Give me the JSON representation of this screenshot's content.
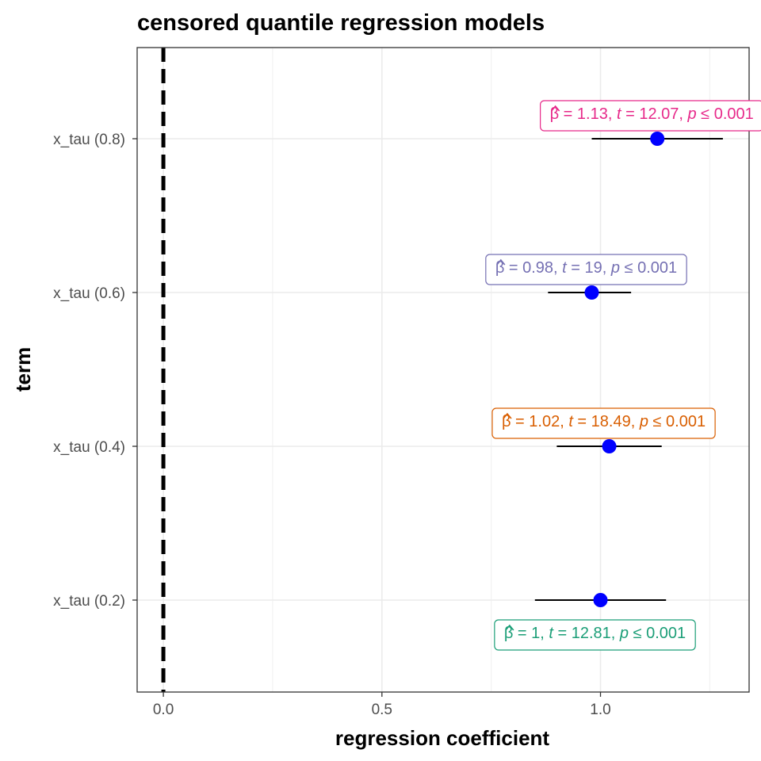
{
  "chart_data": {
    "type": "scatter",
    "title": "censored quantile regression models",
    "xlabel": "regression coefficient",
    "ylabel": "term",
    "xlim": [
      -0.06,
      1.34
    ],
    "x_ticks": [
      0.0,
      0.5,
      1.0
    ],
    "x_tick_labels": [
      "0.0",
      "0.5",
      "1.0"
    ],
    "grid": true,
    "reference_line": {
      "x": 0,
      "style": "dashed",
      "color": "#000000"
    },
    "point_color": "#0000ff",
    "terms": [
      "x_tau (0.2)",
      "x_tau (0.4)",
      "x_tau (0.6)",
      "x_tau (0.8)"
    ],
    "points": [
      {
        "term": "x_tau (0.2)",
        "estimate": 1.0,
        "conf_low": 0.85,
        "conf_high": 1.15,
        "beta": "1",
        "t": "12.81",
        "p": "0.001",
        "label_color": "#1b9e77",
        "label_position": "below"
      },
      {
        "term": "x_tau (0.4)",
        "estimate": 1.02,
        "conf_low": 0.9,
        "conf_high": 1.14,
        "beta": "1.02",
        "t": "18.49",
        "p": "0.001",
        "label_color": "#d95f02",
        "label_position": "above"
      },
      {
        "term": "x_tau (0.6)",
        "estimate": 0.98,
        "conf_low": 0.88,
        "conf_high": 1.07,
        "beta": "0.98",
        "t": "19",
        "p": "0.001",
        "label_color": "#7570b3",
        "label_position": "above"
      },
      {
        "term": "x_tau (0.8)",
        "estimate": 1.13,
        "conf_low": 0.98,
        "conf_high": 1.28,
        "beta": "1.13",
        "t": "12.07",
        "p": "0.001",
        "label_color": "#e7298a",
        "label_position": "above"
      }
    ]
  }
}
